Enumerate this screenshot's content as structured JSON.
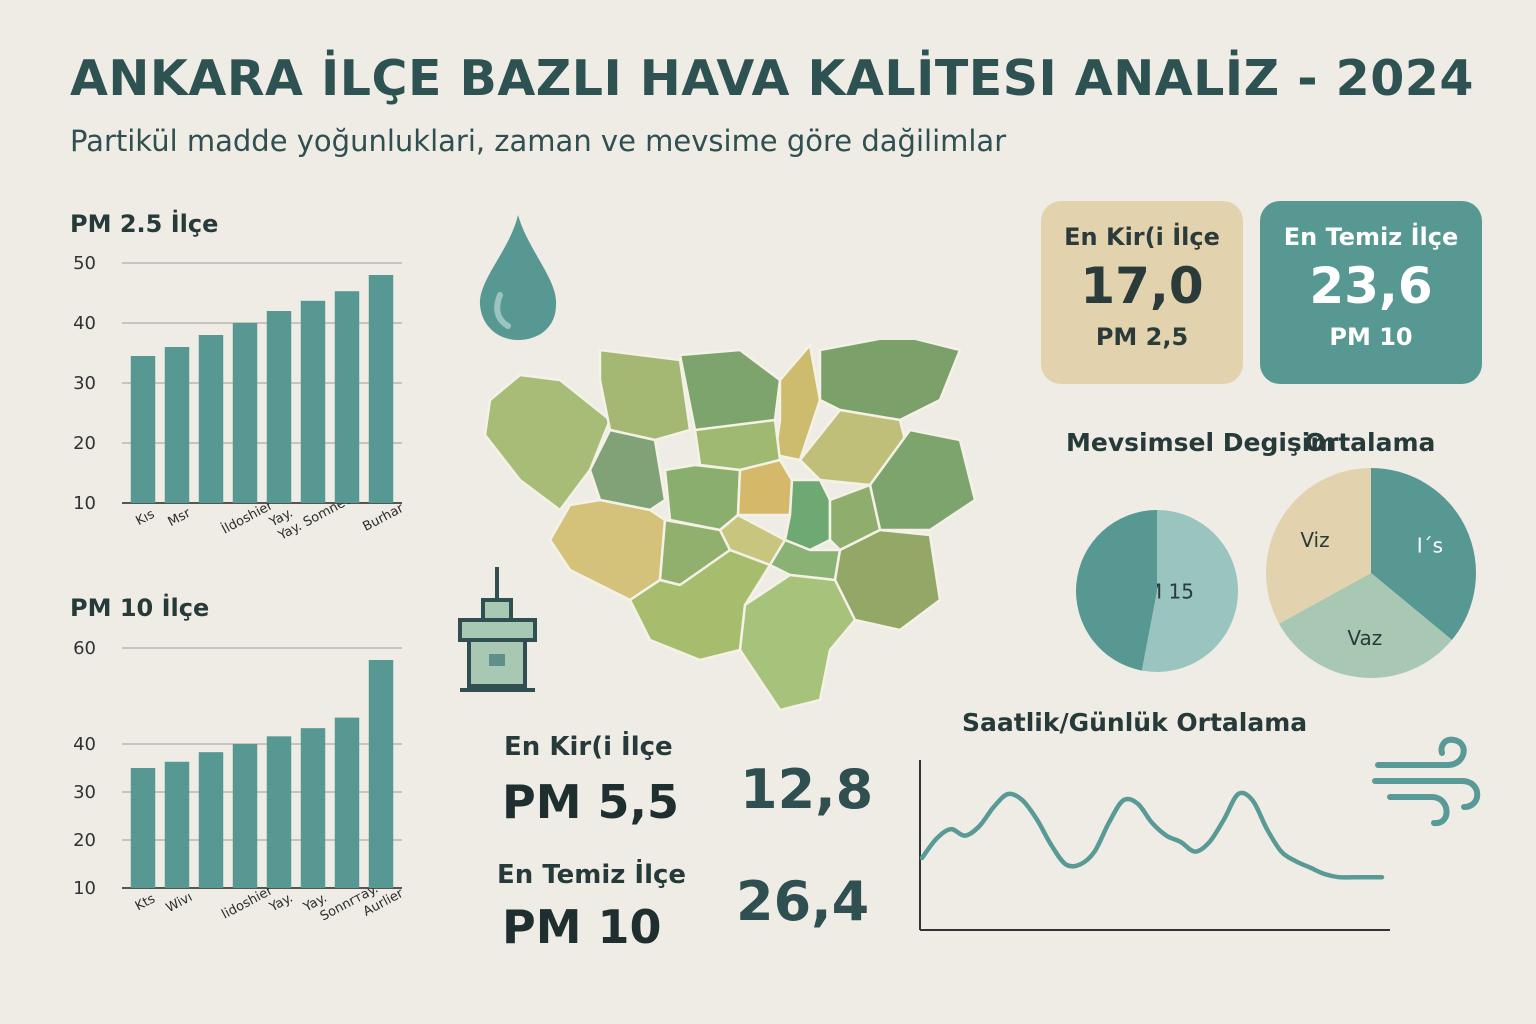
{
  "header": {
    "title": "ANKARA İLÇE BAZLI HAVA KALİTESI ANALİZ - 2024",
    "subtitle": "Partikül madde yoğunluklari, zaman ve mevsime göre dağilimlar"
  },
  "colors": {
    "background": "#efece6",
    "bar": "#579893",
    "teal_dark": "#579893",
    "teal_light": "#9ac4c0",
    "sand": "#e2d3ae",
    "sage": "#a9c8b4",
    "line": "#5a9a96"
  },
  "icons": [
    "water-drop-icon",
    "air-monitoring-station-icon",
    "wind-icon"
  ],
  "chart_data": [
    {
      "type": "bar",
      "title": "PM 2.5 İlçe",
      "categories": [
        "Kıs",
        "Msr",
        "",
        "İldoshier",
        "Yay.",
        "Yay. Somnev",
        "",
        "Burhar"
      ],
      "values": [
        34.5,
        36,
        38,
        40,
        42,
        43.7,
        45.3,
        48
      ],
      "yticks": [
        10,
        20,
        30,
        40,
        50
      ],
      "ylim": [
        10,
        50
      ],
      "grid": true
    },
    {
      "type": "bar",
      "title": "PM 10  İlçe",
      "categories": [
        "Kts",
        "Wivı",
        "",
        "lidoshier",
        "Yay.",
        "Yay.",
        "Sonnrтay.",
        "Aurlier"
      ],
      "values": [
        35,
        36.3,
        38.3,
        40,
        41.6,
        43.3,
        45.5,
        57.5
      ],
      "yticks": [
        10,
        20,
        30,
        40,
        60
      ],
      "ylim": [
        10,
        60
      ],
      "grid": true
    },
    {
      "type": "pie",
      "title": "Mevsimsel Degişim",
      "slices": [
        {
          "label": "PM 15",
          "value": 53,
          "color": "#9ac4c0"
        },
        {
          "label": "",
          "value": 47,
          "color": "#579893"
        }
      ]
    },
    {
      "type": "pie",
      "title": "Ortalama",
      "slices": [
        {
          "label": "I´s",
          "value": 36,
          "color": "#579893"
        },
        {
          "label": "Vaz",
          "value": 31,
          "color": "#a9c8b4"
        },
        {
          "label": "Viz",
          "value": 33,
          "color": "#e2d3ae"
        }
      ]
    },
    {
      "type": "line",
      "title": "Saatlik/Günlük Ortalama",
      "x": [
        0,
        1,
        2,
        3,
        4,
        5,
        6,
        7,
        8,
        9,
        10,
        11,
        12,
        13,
        14,
        15,
        16,
        17,
        18,
        19,
        20,
        21,
        22,
        23,
        24,
        25,
        26,
        27,
        28,
        29,
        30,
        31,
        32
      ],
      "values": [
        40,
        52,
        58,
        54,
        60,
        72,
        80,
        76,
        64,
        48,
        36,
        36,
        44,
        62,
        76,
        74,
        62,
        54,
        50,
        44,
        50,
        64,
        80,
        76,
        58,
        44,
        38,
        34,
        30,
        28,
        28,
        28,
        28
      ],
      "ylim": [
        0,
        100
      ],
      "grid": false,
      "x_ticks": [],
      "y_ticks": []
    }
  ],
  "cards": {
    "dirtiest": {
      "title": "En Kir(i İlçe",
      "value": "17,0",
      "unit": "PM 2,5"
    },
    "cleanest": {
      "title": "En Temiz İlçe",
      "value": "23,6",
      "unit": "PM 10"
    }
  },
  "stats": {
    "dirtiest": {
      "label": "En Kir(i İlçe",
      "unit": "PM 5,5",
      "value": "12,8"
    },
    "cleanest": {
      "label": "En Temiz İlçe",
      "unit": "PM 10",
      "value": "26,4"
    }
  }
}
